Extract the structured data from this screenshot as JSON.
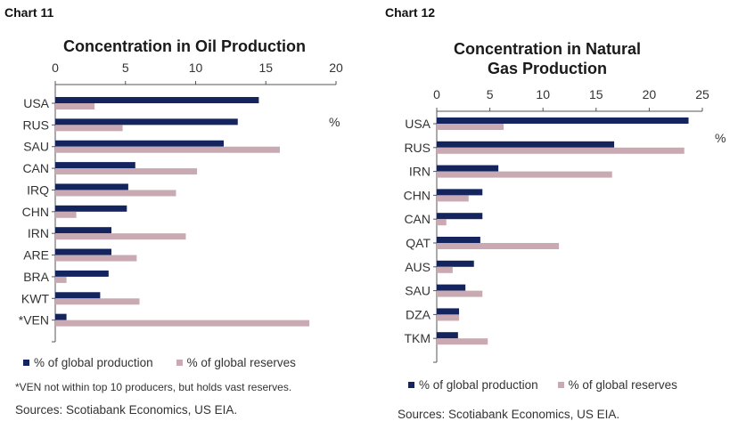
{
  "colors": {
    "production": "#13245e",
    "reserves": "#c9a9b2",
    "axis": "#555555"
  },
  "chart_data": [
    {
      "type": "bar",
      "orientation": "horizontal",
      "label": "Chart 11",
      "title": "Concentration in Oil Production",
      "unit": "%",
      "xlim": [
        0,
        20
      ],
      "xticks": [
        "0",
        "5",
        "10",
        "15",
        "20"
      ],
      "categories": [
        "USA",
        "RUS",
        "SAU",
        "CAN",
        "IRQ",
        "CHN",
        "IRN",
        "ARE",
        "BRA",
        "KWT",
        "*VEN"
      ],
      "series": [
        {
          "name": "% of global production",
          "values": [
            14.5,
            13.0,
            12.0,
            5.7,
            5.2,
            5.1,
            4.0,
            4.0,
            3.8,
            3.2,
            0.8
          ]
        },
        {
          "name": "% of global reserves",
          "values": [
            2.8,
            4.8,
            16.0,
            10.1,
            8.6,
            1.5,
            9.3,
            5.8,
            0.8,
            6.0,
            18.1
          ]
        }
      ],
      "note": "*VEN not within top 10 producers, but holds vast reserves.",
      "source": "Sources: Scotiabank Economics, US EIA."
    },
    {
      "type": "bar",
      "orientation": "horizontal",
      "label": "Chart 12",
      "title": "Concentration in Natural Gas Production",
      "unit": "%",
      "xlim": [
        0,
        25
      ],
      "xticks": [
        "0",
        "5",
        "10",
        "15",
        "20",
        "25"
      ],
      "categories": [
        "USA",
        "RUS",
        "IRN",
        "CHN",
        "CAN",
        "QAT",
        "AUS",
        "SAU",
        "DZA",
        "TKM"
      ],
      "series": [
        {
          "name": "% of global production",
          "values": [
            23.7,
            16.7,
            5.8,
            4.3,
            4.3,
            4.1,
            3.5,
            2.7,
            2.1,
            2.0
          ]
        },
        {
          "name": "% of global reserves",
          "values": [
            6.3,
            23.3,
            16.5,
            3.0,
            0.9,
            11.5,
            1.5,
            4.3,
            2.1,
            4.8
          ]
        }
      ],
      "note": "",
      "source": "Sources: Scotiabank Economics, US EIA."
    }
  ]
}
